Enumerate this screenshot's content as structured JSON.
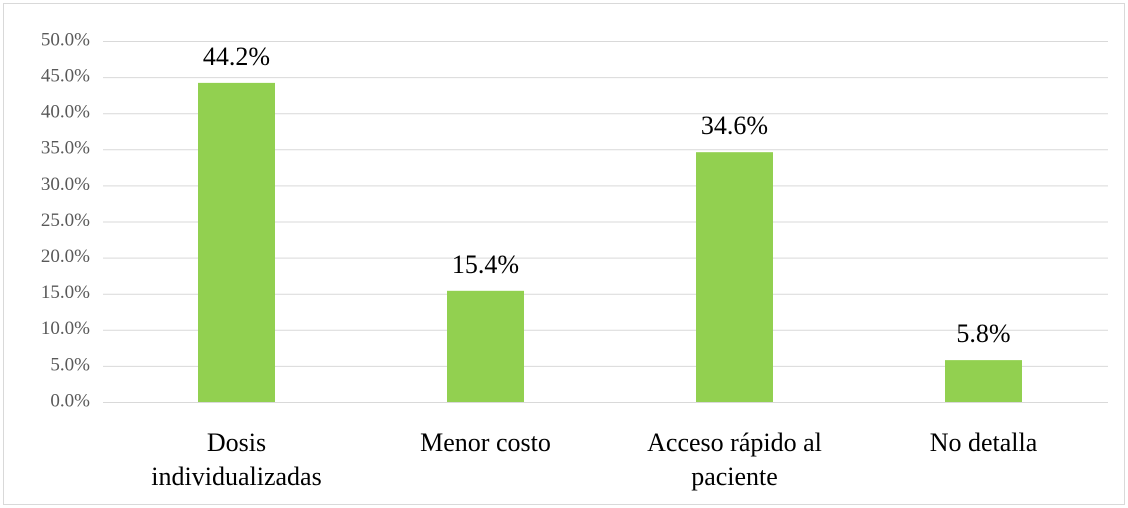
{
  "chart_data": {
    "type": "bar",
    "categories": [
      "Dosis individualizadas",
      "Menor costo",
      "Acceso rápido al paciente",
      "No detalla"
    ],
    "values": [
      44.2,
      15.4,
      34.6,
      5.8
    ],
    "value_labels": [
      "44.2%",
      "15.4%",
      "34.6%",
      "5.8%"
    ],
    "color": "#92d050",
    "ylim": [
      0,
      50
    ],
    "yticks": [
      {
        "value": 0,
        "label": "0.0%"
      },
      {
        "value": 5,
        "label": "5.0%"
      },
      {
        "value": 10,
        "label": "10.0%"
      },
      {
        "value": 15,
        "label": "15.0%"
      },
      {
        "value": 20,
        "label": "20.0%"
      },
      {
        "value": 25,
        "label": "25.0%"
      },
      {
        "value": 30,
        "label": "30.0%"
      },
      {
        "value": 35,
        "label": "35.0%"
      },
      {
        "value": 40,
        "label": "40.0%"
      },
      {
        "value": 45,
        "label": "45.0%"
      },
      {
        "value": 50,
        "label": "50.0%"
      }
    ],
    "grid": true
  }
}
